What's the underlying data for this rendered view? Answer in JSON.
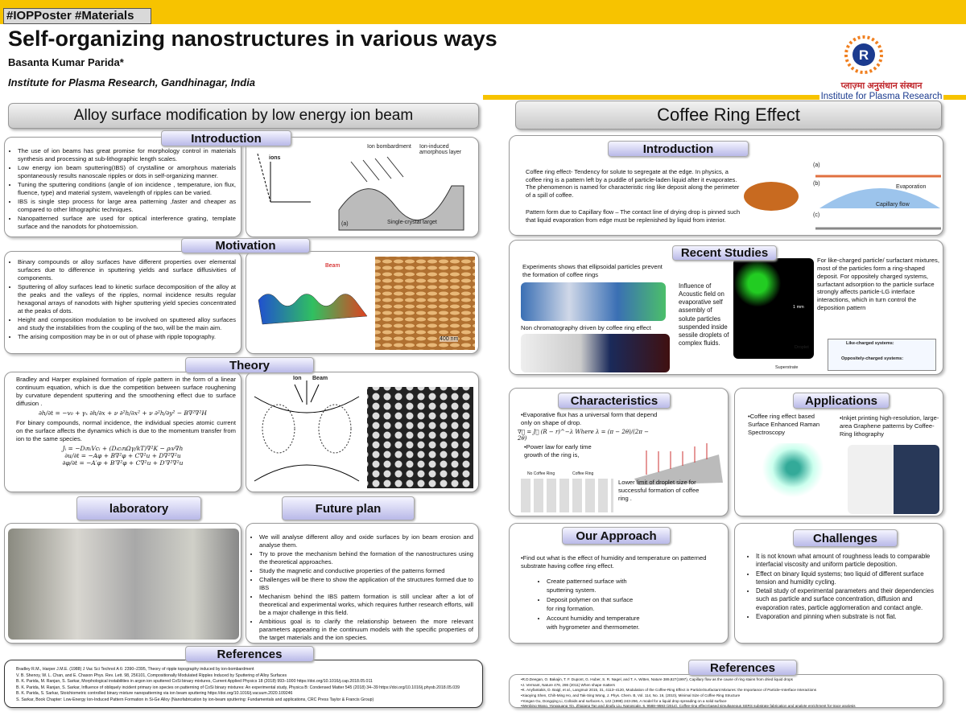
{
  "header": {
    "tag": "#IOPPoster #Materials",
    "title": "Self-organizing nanostructures in various ways",
    "author": "Basanta Kumar Parida*",
    "affiliation": "Institute for Plasma Research, Gandhinagar, India",
    "logo_hindi": "प्लाज़्मा अनुसंधान संस्थान",
    "logo_english": "Institute for Plasma Research"
  },
  "left": {
    "title": "Alloy surface modification by low energy ion beam",
    "introduction": {
      "heading": "Introduction",
      "items": [
        "The use of ion beams has great promise for morphology control in materials synthesis and processing at sub-lithographic length scales.",
        "Low energy ion beam sputtering(IBS) of crystalline or amorphous materials spontaneously results nanoscale ripples or dots in self-organizing manner.",
        "Tuning the sputtering conditions (angle of ion incidence , temperature, ion flux, fluence, type) and material system, wavelength of ripples can be varied.",
        "IBS is single step process for large area patterning ,faster and cheaper as compared to other lithographic techniques.",
        "Nanopatterned surface are used for optical interference grating, template surface and the nanodots for photoemission."
      ],
      "figure_labels": [
        "ions",
        "Ion bombardment",
        "Ion-induced amorphous layer",
        "Single-crystal target",
        "(a)"
      ]
    },
    "motivation": {
      "heading": "Motivation",
      "items": [
        "Binary compounds or alloy surfaces have different properties over elemental surfaces due to difference in sputtering yields and surface diffusivities of components.",
        "Sputtering of alloy surfaces lead to kinetic surface decomposition of the alloy at the peaks and the valleys of the ripples, normal incidence results regular hexagonal arrays of nanodots with higher sputtering yield species concentrated at the peaks of dots.",
        "Height and composition modulation to be involved on sputtered alloy surfaces and study the instabilities from the coupling of the two, will be the main aim.",
        "The arising composition may be in or out of phase with ripple topography."
      ],
      "figure_labels": [
        "Beam",
        "400 nm"
      ]
    },
    "theory": {
      "heading": "Theory",
      "item_1": "Bradley and Harper explained formation of ripple pattern in the form of a linear continuum equation, which is due the competition between surface roughening by curvature dependent sputtering and the smoothening effect due to surface diffusion .",
      "equation_1": "∂h/∂t = −v₀ + γₓ ∂h/∂x + ν ∂²h/∂x² + ν ∂²h/∂y² − B∇²∇²H",
      "item_2": "For binary compounds, normal incidence, the individual species atomic current on the surface affects the dynamics which is due to the momentum transfer from ion to the same species.",
      "equations_2": [
        "Jᵢ = −DᵢnᵢVcᵢ + (DᵢcᵢnΩγ/kT)∇²K − ρᵢv∇h",
        "∂u/∂t = −Aφ + B∇²φ + C∇²u + D∇²∇²u",
        "∂φ/∂t = −A′φ + B′∇²φ + C∇²u + D′∇²∇²u"
      ],
      "figure_labels": [
        "Ion",
        "Beam"
      ]
    },
    "laboratory": {
      "heading": "laboratory"
    },
    "future_plan": {
      "heading": "Future plan",
      "items": [
        "We will analyse different alloy and oxide surfaces by ion beam erosion and analyse them.",
        "Try to prove the mechanism behind the formation of the nanostructures using the theoretical approaches.",
        "Study the magnetic and conductive properties of the patterns formed",
        "Challenges will be there to show the application of the structures formed due to IBS",
        "Mechanism behind the IBS pattern formation is still unclear after a lot of theoretical and experimental works, which requires further research efforts, will be a major challenge in this field.",
        "Ambitious goal is to clarify the relationship between the more relevant parameters appearing in the continuum models with the specific properties of the target materials and the ion species."
      ]
    },
    "references": {
      "heading": "References",
      "items": [
        "Bradley R.M., Harper J.M.E. (1988) J Vac Sci Technol A 6: 2390–2395, Theory of ripple topography induced by ion-bombardment",
        "V. B. Shenoy, W. L. Chan, and E. Chason Phys. Rev. Lett. 98, 256101, Compositionally Modulated Ripples Induced by Sputtering of Alloy Surfaces",
        "B. K. Parida, M. Ranjan, S. Sarkar, Morphological instabilities in argon ion sputtered CoSi binary mixtures, Current Applied Physics 18 (2018) 993–1000 https://doi.org/10.1016/j.cap.2018.05.011",
        "B. K. Parida, M. Ranjan, S. Sarkar, Influence of obliquely incident primary ion species on patterning of CoSi binary mixtures: An experimental study, Physica B: Condensed Matter 545 (2018) 34–39 https://doi.org/10.1016/j.physb.2018.05.039",
        "B. K. Parida, S. Sarkar, Stoichiometric controlled binary mixture nanopatterning via ion beam sputtering https://doi.org/10.1016/j.vacuum.2020.109246",
        "S. Sarkar, Book Chapter: Low-Energy Ion-Induced Pattern Formation in Si-Ge Alloy (Nanofabrication by ion-beam sputtering: Fundamentals and applications, CRC Press Taylor & Francis Group)"
      ]
    }
  },
  "right": {
    "title": "Coffee Ring Effect",
    "introduction": {
      "heading": "Introduction",
      "paragraph_1": "Coffee ring effect- Tendency for solute to segregate at the edge. In physics, a coffee ring is a pattern left by a puddle of particle-laden liquid after it evaporates. The phenomenon is named for characteristic ring like deposit along the perimeter of a spill of coffee.",
      "paragraph_2": "Pattern form due to Capillary flow – The contact line of drying drop is pinned such that liquid evaporation from edge must be replenished by liquid from interior.",
      "figure_labels": [
        "(a)",
        "(b)",
        "(c)",
        "Evaporation",
        "Capillary flow"
      ]
    },
    "recent_studies": {
      "heading": "Recent Studies",
      "ellipsoidal": "Experiments shows that ellipsoidal particles prevent the formation of coffee rings",
      "chromatography": "Non chromatography driven by coffee ring effect",
      "acoustic": "Influence of Acoustic field on evaporative self assembly of solute particles suspended inside sessile droplets of complex fluids.",
      "charged": "For like-charged particle/ surfactant mixtures, most of the particles form a ring-shaped deposit. For oppositely charged systems, surfactant adsorption to the particle surface strongly affects particle-LG interface interactions, which in turn control the deposition pattern",
      "figure_labels": [
        "Like-charged systems:",
        "Oppositely-charged systems:",
        "Droplet",
        "Superstrate",
        "1 mm"
      ]
    },
    "characteristics": {
      "heading": "Characteristics",
      "flux": "•Evaporative flux has a universal form that depend only on shape of drop.",
      "equation": "∇⃗ = J⃗ (R − r)^−λ   Where   λ = (π − 2θ)/(2π − 2θ)",
      "power_law": "•Power law for early time growth of the ring is,",
      "lower_limit": "Lower limit of droplet size for successful formation of coffee ring .",
      "figure_labels": [
        "No Coffee Ring",
        "Coffee Ring"
      ]
    },
    "applications": {
      "heading": "Applications",
      "sers": "•Coffee ring effect based Surface Enhanced Raman Spectroscopy",
      "inkjet": "•Inkjet printing high-resolution, large-area Graphene patterns by Coffee-Ring lithography"
    },
    "our_approach": {
      "heading": "Our Approach",
      "intro": "•Find out what is the effect of humidity and temperature on patterned substrate having coffee ring effect.",
      "items": [
        "Create patterned surface with sputtering system.",
        "Deposit polymer on that surface for ring formation.",
        "Account humidity and temperature with hygrometer and thermometer."
      ]
    },
    "challenges": {
      "heading": "Challenges",
      "items": [
        "It is not known what amount of roughness leads to comparable interfacial viscosity and uniform particle deposition.",
        "Effect on binary liquid systems; two liquid of different surface tension and humidity cycling.",
        "Detail study of experimental parameters and their dependencies such as particle and surface concentration, diffusion and evaporation rates, particle agglomeration and contact angle.",
        "Evaporation and pinning when substrate is not flat."
      ]
    },
    "references": {
      "heading": "References",
      "items": [
        "•R.D.Deegan, O. Bakajin, T. F. Dupont, G. Huber, S. R. Nagel, and T. A. Witten, Nature 389,827(1997), Capillary flow as the cause of ring stains from dried liquid drops",
        "•J. Vermant, Nature 476, 286 (2011) When shape matters",
        "•K. Anyfantakis, D. Baigl, et al., Langmuir 2015, 31, 4113–4120, Modulation of the Coffee-Ring Effect in Particle/Surfactant Mixtures: the Importance of Particle–Interface Interactions",
        "•Xiaoying Shen, Chih-Ming Ho, and Tak-Sing Wong, J. Phys. Chem. B, Vol. 114, No. 16, (2010), Minimal Size of Coffee Ring Structure",
        "•Yongan Gu, Dongqing Li, Colloids and surfaces A, 142 (1998) 243-256, A model for a liquid drop spreading on a solid surface",
        "•Wenbing Wang, Yongguang Yin, Zhiqiang Tan and Jingfu Liu, Nanoscale, 6, 9588–9593 (2014), Coffee-ring effect-based simultaneous SERS substrate fabrication and analyte enrichment for trace analysis"
      ]
    }
  }
}
